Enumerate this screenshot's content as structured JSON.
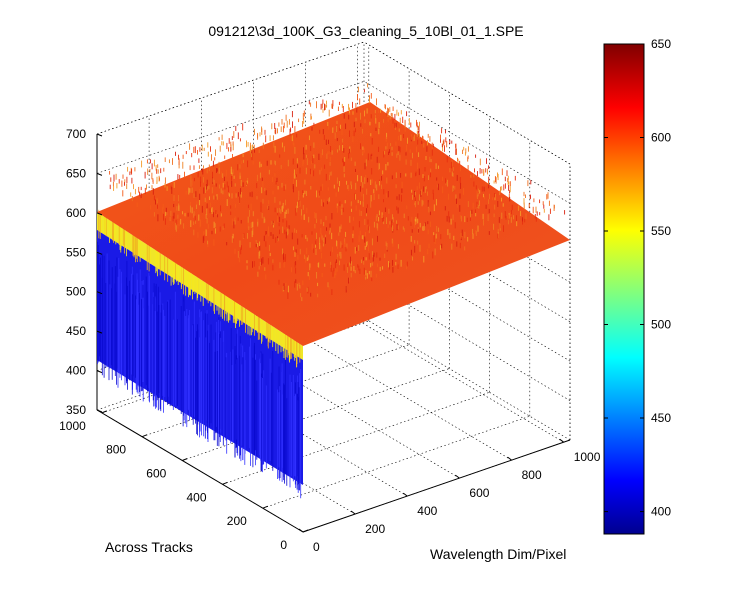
{
  "chart_data": {
    "type": "surface3d",
    "title": "091212\\3d_100K_G3_cleaning_5_10Bl_01_1.SPE",
    "xlabel": "Wavelength Dim/Pixel",
    "ylabel": "Across Tracks",
    "zlabel": "",
    "xlim": [
      0,
      1024
    ],
    "ylim": [
      0,
      1024
    ],
    "zlim": [
      350,
      700
    ],
    "xticks": [
      "0",
      "200",
      "400",
      "600",
      "800",
      "1000"
    ],
    "yticks": [
      "0",
      "200",
      "400",
      "600",
      "800",
      "1000"
    ],
    "zticks": [
      "350",
      "400",
      "450",
      "500",
      "550",
      "600",
      "650",
      "700"
    ],
    "surface_level": 600,
    "noise_range": [
      575,
      625
    ],
    "side_wall_base": 390,
    "colormap": "jet",
    "colorbar": {
      "range": [
        388,
        650
      ],
      "ticks": [
        "400",
        "450",
        "500",
        "550",
        "600",
        "650"
      ],
      "tick_values": [
        400,
        450,
        500,
        550,
        600,
        650
      ]
    },
    "grid": true
  }
}
